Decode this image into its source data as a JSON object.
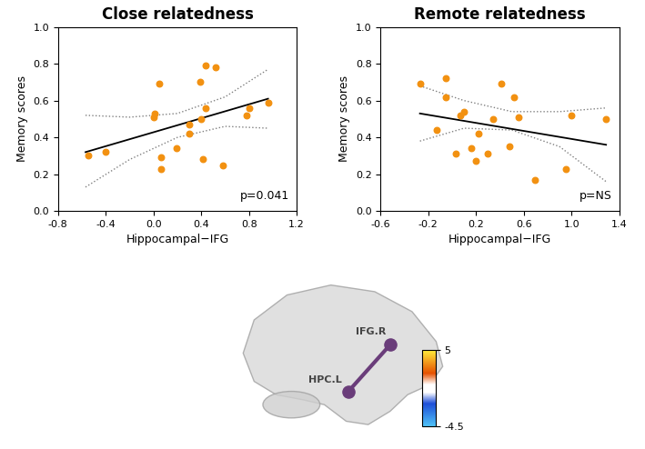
{
  "chart_data": [
    {
      "type": "scatter",
      "title": "Close relatedness",
      "x_label": "Hippocampal−IFG",
      "y_label": "Memory scores",
      "annotation": "p=0.041",
      "color": "#f29111",
      "marker": "circle",
      "grid": false,
      "x": [
        -0.55,
        -0.4,
        0.0,
        0.01,
        0.05,
        0.06,
        0.06,
        0.19,
        0.3,
        0.3,
        0.39,
        0.4,
        0.41,
        0.44,
        0.44,
        0.52,
        0.58,
        0.78,
        0.8,
        0.96
      ],
      "values": [
        0.3,
        0.32,
        0.51,
        0.53,
        0.69,
        0.29,
        0.23,
        0.34,
        0.47,
        0.42,
        0.7,
        0.5,
        0.28,
        0.79,
        0.56,
        0.78,
        0.25,
        0.52,
        0.56,
        0.59
      ],
      "fit": {
        "x": [
          -0.57,
          0.96
        ],
        "y": [
          0.32,
          0.61
        ]
      },
      "confidence_band": {
        "x": [
          -0.57,
          -0.2,
          0.2,
          0.6,
          0.96
        ],
        "upper": [
          0.52,
          0.51,
          0.53,
          0.62,
          0.77
        ],
        "lower": [
          0.13,
          0.28,
          0.4,
          0.46,
          0.45
        ]
      },
      "xlim": [
        -0.8,
        1.2
      ],
      "xticks": [
        -0.8,
        -0.4,
        {
          "value": 0,
          "label": "0.0"
        },
        0.4,
        0.8,
        1.2
      ],
      "ylim": [
        0,
        1.0
      ],
      "yticks": [
        {
          "value": 0,
          "label": "0.0"
        },
        0.2,
        0.4,
        0.6,
        0.8,
        {
          "value": 1.0,
          "label": "1.0"
        }
      ]
    },
    {
      "type": "scatter",
      "title": "Remote relatedness",
      "x_label": "Hippocampal−IFG",
      "y_label": "Memory scores",
      "annotation": "p=NS",
      "color": "#f29111",
      "marker": "circle",
      "grid": false,
      "x": [
        -0.27,
        -0.13,
        -0.05,
        -0.05,
        0.03,
        0.07,
        0.1,
        0.16,
        0.2,
        0.22,
        0.3,
        0.34,
        0.41,
        0.48,
        0.52,
        0.56,
        0.69,
        0.95,
        1.0,
        1.29
      ],
      "values": [
        0.69,
        0.44,
        0.72,
        0.62,
        0.31,
        0.52,
        0.54,
        0.34,
        0.27,
        0.42,
        0.31,
        0.5,
        0.69,
        0.35,
        0.62,
        0.51,
        0.17,
        0.23,
        0.52,
        0.5
      ],
      "fit": {
        "x": [
          -0.27,
          1.29
        ],
        "y": [
          0.53,
          0.36
        ]
      },
      "confidence_band": {
        "x": [
          -0.27,
          0.1,
          0.5,
          0.9,
          1.29
        ],
        "upper": [
          0.68,
          0.6,
          0.54,
          0.54,
          0.56
        ],
        "lower": [
          0.38,
          0.45,
          0.44,
          0.35,
          0.16
        ]
      },
      "xlim": [
        -0.6,
        1.4
      ],
      "xticks": [
        -0.6,
        -0.2,
        0.2,
        0.6,
        {
          "value": 1.0,
          "label": "1.0"
        },
        1.4
      ],
      "ylim": [
        0,
        1.0
      ],
      "yticks": [
        {
          "value": 0,
          "label": "0.0"
        },
        0.2,
        0.4,
        0.6,
        0.8,
        {
          "value": 1.0,
          "label": "1.0"
        }
      ]
    }
  ],
  "connectivity_figure": {
    "nodes": [
      {
        "label": "IFG.R"
      },
      {
        "label": "HPC.L"
      }
    ],
    "edge_color": "#6a3d7a",
    "colorbar": {
      "range": [
        -4.5,
        5
      ],
      "ticks": [
        -4.5,
        5
      ]
    }
  }
}
